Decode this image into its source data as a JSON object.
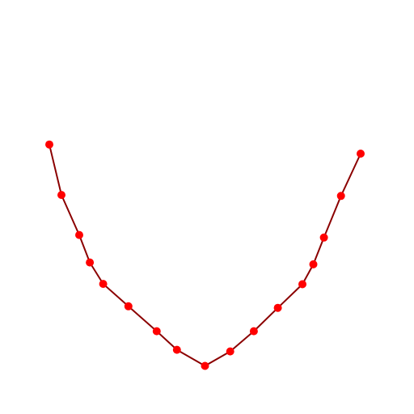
{
  "chart_data": {
    "type": "line",
    "title": "",
    "xlabel": "",
    "ylabel": "",
    "axes_visible": false,
    "grid": false,
    "legend": "none",
    "xlim": [
      0,
      100
    ],
    "ylim": [
      0,
      100
    ],
    "series": [
      {
        "line_color": "#8b0000",
        "marker_color": "#ff0000",
        "marker": "circle",
        "points": [
          {
            "x": 0.0,
            "y": 75.2
          },
          {
            "x": 3.9,
            "y": 59.2
          },
          {
            "x": 9.6,
            "y": 46.5
          },
          {
            "x": 13.0,
            "y": 37.8
          },
          {
            "x": 17.3,
            "y": 31.0
          },
          {
            "x": 25.4,
            "y": 23.9
          },
          {
            "x": 34.5,
            "y": 16.0
          },
          {
            "x": 41.0,
            "y": 10.1
          },
          {
            "x": 50.0,
            "y": 5.0
          },
          {
            "x": 58.1,
            "y": 9.6
          },
          {
            "x": 65.7,
            "y": 16.0
          },
          {
            "x": 73.4,
            "y": 23.4
          },
          {
            "x": 81.3,
            "y": 30.9
          },
          {
            "x": 84.8,
            "y": 37.2
          },
          {
            "x": 88.2,
            "y": 45.7
          },
          {
            "x": 93.7,
            "y": 58.9
          },
          {
            "x": 100.0,
            "y": 72.3
          }
        ]
      }
    ]
  }
}
